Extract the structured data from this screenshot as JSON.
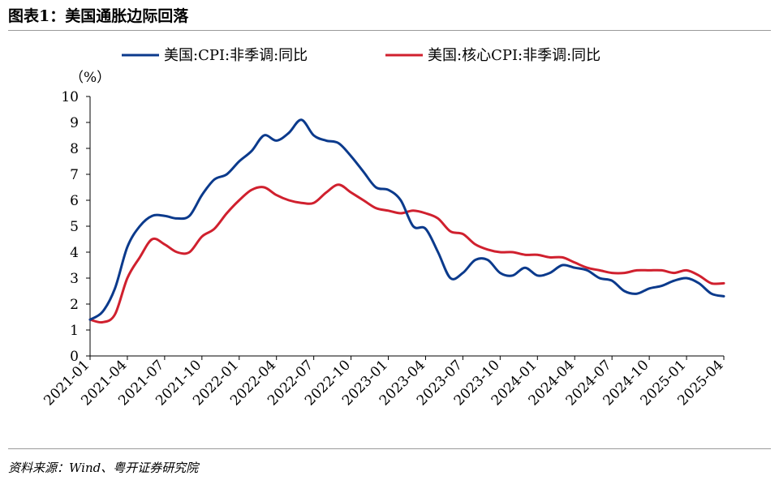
{
  "figure_title": "图表1：美国通胀边际回落",
  "source_note": "资料来源：Wind、粤开证券研究院",
  "chart_data": {
    "type": "line",
    "unit_label": "（%）",
    "ylim": [
      0,
      10
    ],
    "yticks": [
      0,
      1,
      2,
      3,
      4,
      5,
      6,
      7,
      8,
      9,
      10
    ],
    "xlim": [
      "2021-01",
      "2025-04"
    ],
    "xticks": [
      "2021-01",
      "2021-04",
      "2021-07",
      "2021-10",
      "2022-01",
      "2022-04",
      "2022-07",
      "2022-10",
      "2023-01",
      "2023-04",
      "2023-07",
      "2023-10",
      "2024-01",
      "2024-04",
      "2024-07",
      "2024-10",
      "2025-01",
      "2025-04"
    ],
    "legend_position": "top",
    "grid": false,
    "x": [
      "2021-01",
      "2021-02",
      "2021-03",
      "2021-04",
      "2021-05",
      "2021-06",
      "2021-07",
      "2021-08",
      "2021-09",
      "2021-10",
      "2021-11",
      "2021-12",
      "2022-01",
      "2022-02",
      "2022-03",
      "2022-04",
      "2022-05",
      "2022-06",
      "2022-07",
      "2022-08",
      "2022-09",
      "2022-10",
      "2022-11",
      "2022-12",
      "2023-01",
      "2023-02",
      "2023-03",
      "2023-04",
      "2023-05",
      "2023-06",
      "2023-07",
      "2023-08",
      "2023-09",
      "2023-10",
      "2023-11",
      "2023-12",
      "2024-01",
      "2024-02",
      "2024-03",
      "2024-04",
      "2024-05",
      "2024-06",
      "2024-07",
      "2024-08",
      "2024-09",
      "2024-10",
      "2024-11",
      "2024-12",
      "2025-01",
      "2025-02",
      "2025-03",
      "2025-04"
    ],
    "series": [
      {
        "name": "美国:CPI:非季调:同比",
        "color": "#0b3a8c",
        "values": [
          1.4,
          1.7,
          2.6,
          4.2,
          5.0,
          5.4,
          5.4,
          5.3,
          5.4,
          6.2,
          6.8,
          7.0,
          7.5,
          7.9,
          8.5,
          8.3,
          8.6,
          9.1,
          8.5,
          8.3,
          8.2,
          7.7,
          7.1,
          6.5,
          6.4,
          6.0,
          5.0,
          4.9,
          4.0,
          3.0,
          3.2,
          3.7,
          3.7,
          3.2,
          3.1,
          3.4,
          3.1,
          3.2,
          3.5,
          3.4,
          3.3,
          3.0,
          2.9,
          2.5,
          2.4,
          2.6,
          2.7,
          2.9,
          3.0,
          2.8,
          2.4,
          2.3
        ]
      },
      {
        "name": "美国:核心CPI:非季调:同比",
        "color": "#d0202e",
        "values": [
          1.4,
          1.3,
          1.6,
          3.0,
          3.8,
          4.5,
          4.3,
          4.0,
          4.0,
          4.6,
          4.9,
          5.5,
          6.0,
          6.4,
          6.5,
          6.2,
          6.0,
          5.9,
          5.9,
          6.3,
          6.6,
          6.3,
          6.0,
          5.7,
          5.6,
          5.5,
          5.6,
          5.5,
          5.3,
          4.8,
          4.7,
          4.3,
          4.1,
          4.0,
          4.0,
          3.9,
          3.9,
          3.8,
          3.8,
          3.6,
          3.4,
          3.3,
          3.2,
          3.2,
          3.3,
          3.3,
          3.3,
          3.2,
          3.3,
          3.1,
          2.8,
          2.8
        ]
      }
    ]
  }
}
